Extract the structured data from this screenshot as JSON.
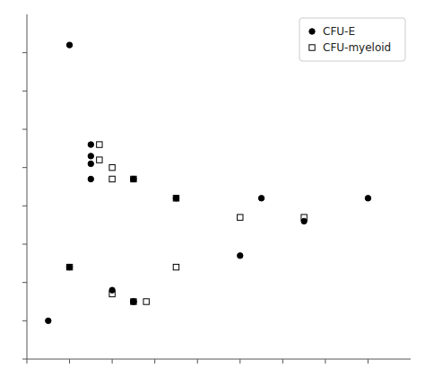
{
  "chart_data": {
    "type": "scatter",
    "series": [
      {
        "name": "CFU-E",
        "color": "black",
        "marker": "circle",
        "x": [
          1.0,
          1.5,
          1.5,
          1.5,
          1.5,
          2.5,
          3.5,
          5.5,
          6.5,
          8.0,
          1.0,
          2.0,
          2.5,
          2.5,
          5.0,
          0.5
        ],
        "values": [
          8.2,
          5.6,
          5.3,
          5.1,
          4.7,
          4.7,
          4.2,
          4.2,
          3.6,
          4.2,
          2.4,
          1.8,
          1.5,
          1.5,
          2.7,
          1.0
        ]
      },
      {
        "name": "CFU-myeloid",
        "color": "black",
        "marker": "open-square",
        "x": [
          1.7,
          1.7,
          2.0,
          2.0,
          2.5,
          3.5,
          5.0,
          6.5,
          1.0,
          2.0,
          2.5,
          2.8,
          3.5
        ],
        "values": [
          5.6,
          5.2,
          5.0,
          4.7,
          4.7,
          4.2,
          3.7,
          3.7,
          2.4,
          1.7,
          1.5,
          1.5,
          2.4
        ]
      }
    ],
    "xlim": [
      0,
      9
    ],
    "ylim": [
      0,
      9
    ],
    "xticks": [
      0,
      1,
      2,
      3,
      4,
      5,
      6,
      7,
      8
    ],
    "yticks": [
      0,
      1,
      2,
      3,
      4,
      5,
      6,
      7,
      8
    ],
    "tick_labels": false,
    "grid": false,
    "legend": "upper right"
  }
}
